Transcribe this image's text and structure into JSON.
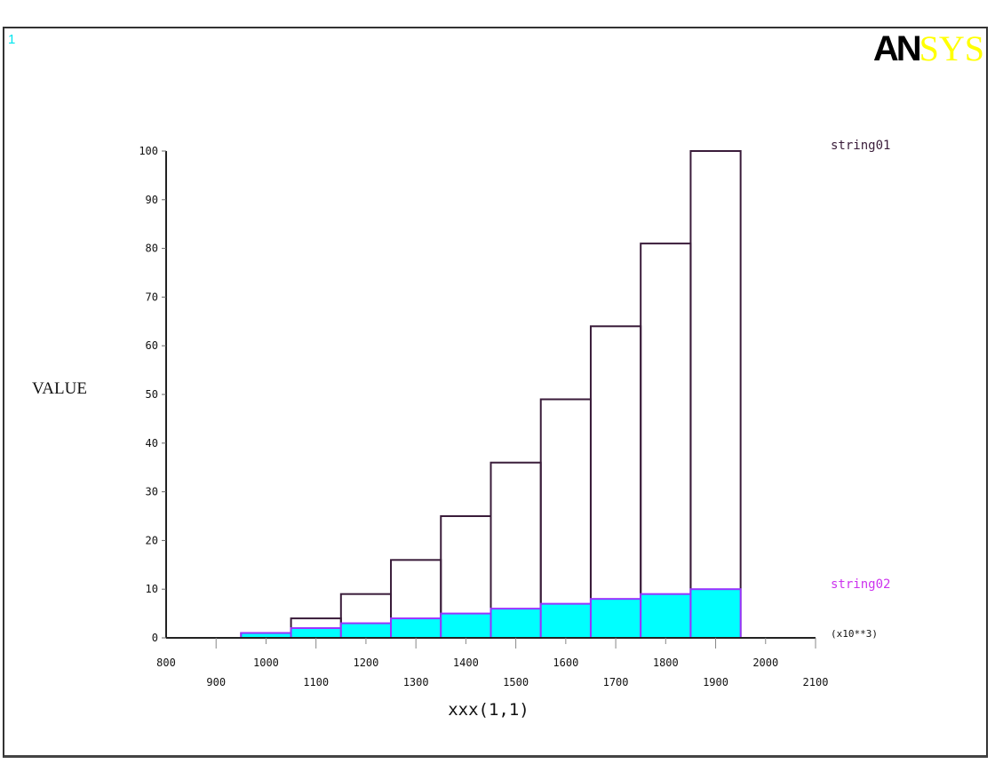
{
  "window": {
    "number": "1",
    "logo_left": "AN",
    "logo_right": "SYS"
  },
  "colors": {
    "series1_edge": "#3a1c3a",
    "series2_fill": "#00ffff",
    "series2_edge": "#9933ff",
    "window_number": "#00e5ee",
    "logo_yellow": "#ffff00"
  },
  "chart_data": {
    "type": "bar",
    "title": "",
    "xlabel": "xxx(1,1)",
    "ylabel": "VALUE",
    "x_multiplier": "(x10**3)",
    "xlim": [
      800,
      2100
    ],
    "ylim": [
      0,
      100
    ],
    "x_ticks": [
      800,
      900,
      1000,
      1100,
      1200,
      1300,
      1400,
      1500,
      1600,
      1700,
      1800,
      1900,
      2000,
      2100
    ],
    "y_ticks": [
      0,
      10,
      20,
      30,
      40,
      50,
      60,
      70,
      80,
      90,
      100
    ],
    "bin_width": 100,
    "categories": [
      1000,
      1100,
      1200,
      1300,
      1400,
      1500,
      1600,
      1700,
      1800,
      1900
    ],
    "series": [
      {
        "name": "string01",
        "values": [
          1,
          4,
          9,
          16,
          25,
          36,
          49,
          64,
          81,
          100
        ]
      },
      {
        "name": "string02",
        "values": [
          1,
          2,
          3,
          4,
          5,
          6,
          7,
          8,
          9,
          10
        ]
      }
    ],
    "legend_position": "right",
    "grid": false
  }
}
